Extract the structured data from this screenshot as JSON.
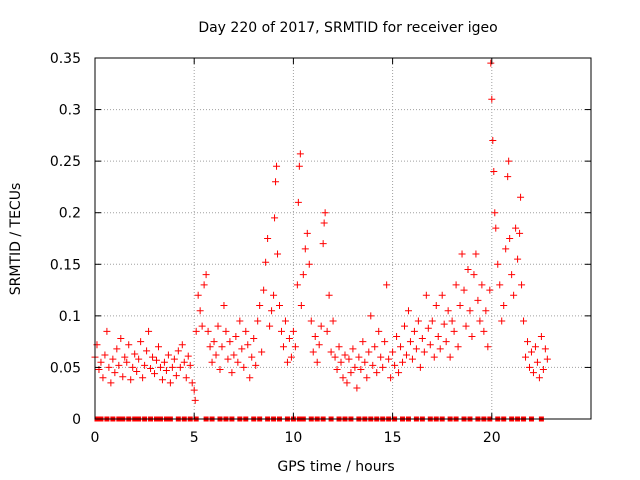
{
  "chart_data": {
    "type": "scatter",
    "title": "Day 220 of 2017, SRMTID for receiver igeo",
    "xlabel": "GPS time / hours",
    "ylabel": "SRMTID / TECUs",
    "xlim": [
      0,
      25
    ],
    "ylim": [
      0,
      0.35
    ],
    "xticks": [
      "0",
      "5",
      "10",
      "15",
      "20"
    ],
    "yticks": [
      "0",
      "0.05",
      "0.1",
      "0.15",
      "0.2",
      "0.25",
      "0.3",
      "0.35"
    ],
    "grid": true,
    "marker": "+",
    "color": "#ff0000",
    "series": [
      {
        "name": "SRMTID",
        "points": [
          [
            0.0,
            0.06
          ],
          [
            0.1,
            0.072
          ],
          [
            0.2,
            0.048
          ],
          [
            0.3,
            0.055
          ],
          [
            0.4,
            0.04
          ],
          [
            0.5,
            0.062
          ],
          [
            0.6,
            0.085
          ],
          [
            0.7,
            0.05
          ],
          [
            0.8,
            0.035
          ],
          [
            0.9,
            0.058
          ],
          [
            1.0,
            0.045
          ],
          [
            1.1,
            0.068
          ],
          [
            1.2,
            0.052
          ],
          [
            1.3,
            0.078
          ],
          [
            1.4,
            0.041
          ],
          [
            1.5,
            0.06
          ],
          [
            1.6,
            0.055
          ],
          [
            1.7,
            0.072
          ],
          [
            1.8,
            0.038
          ],
          [
            1.9,
            0.05
          ],
          [
            2.0,
            0.063
          ],
          [
            2.1,
            0.046
          ],
          [
            2.2,
            0.058
          ],
          [
            2.3,
            0.075
          ],
          [
            2.4,
            0.04
          ],
          [
            2.5,
            0.052
          ],
          [
            2.6,
            0.066
          ],
          [
            2.7,
            0.085
          ],
          [
            2.8,
            0.049
          ],
          [
            2.9,
            0.06
          ],
          [
            3.0,
            0.044
          ],
          [
            3.1,
            0.057
          ],
          [
            3.2,
            0.07
          ],
          [
            3.3,
            0.05
          ],
          [
            3.4,
            0.038
          ],
          [
            3.5,
            0.055
          ],
          [
            3.6,
            0.047
          ],
          [
            3.7,
            0.062
          ],
          [
            3.8,
            0.035
          ],
          [
            3.9,
            0.05
          ],
          [
            4.0,
            0.058
          ],
          [
            4.1,
            0.042
          ],
          [
            4.2,
            0.066
          ],
          [
            4.3,
            0.05
          ],
          [
            4.4,
            0.072
          ],
          [
            4.5,
            0.055
          ],
          [
            4.6,
            0.04
          ],
          [
            4.7,
            0.061
          ],
          [
            4.8,
            0.052
          ],
          [
            4.9,
            0.035
          ],
          [
            5.0,
            0.028
          ],
          [
            5.05,
            0.018
          ],
          [
            5.1,
            0.085
          ],
          [
            5.2,
            0.12
          ],
          [
            5.3,
            0.105
          ],
          [
            5.4,
            0.09
          ],
          [
            5.5,
            0.13
          ],
          [
            5.6,
            0.14
          ],
          [
            5.7,
            0.085
          ],
          [
            5.8,
            0.07
          ],
          [
            5.9,
            0.055
          ],
          [
            6.0,
            0.075
          ],
          [
            6.1,
            0.062
          ],
          [
            6.2,
            0.09
          ],
          [
            6.3,
            0.048
          ],
          [
            6.4,
            0.07
          ],
          [
            6.5,
            0.11
          ],
          [
            6.6,
            0.085
          ],
          [
            6.7,
            0.058
          ],
          [
            6.8,
            0.075
          ],
          [
            6.9,
            0.045
          ],
          [
            7.0,
            0.062
          ],
          [
            7.1,
            0.08
          ],
          [
            7.2,
            0.055
          ],
          [
            7.3,
            0.095
          ],
          [
            7.4,
            0.068
          ],
          [
            7.5,
            0.05
          ],
          [
            7.6,
            0.085
          ],
          [
            7.7,
            0.072
          ],
          [
            7.8,
            0.04
          ],
          [
            7.9,
            0.06
          ],
          [
            8.0,
            0.078
          ],
          [
            8.1,
            0.052
          ],
          [
            8.2,
            0.095
          ],
          [
            8.3,
            0.11
          ],
          [
            8.4,
            0.065
          ],
          [
            8.5,
            0.125
          ],
          [
            8.6,
            0.152
          ],
          [
            8.7,
            0.175
          ],
          [
            8.8,
            0.09
          ],
          [
            8.9,
            0.105
          ],
          [
            9.0,
            0.12
          ],
          [
            9.05,
            0.195
          ],
          [
            9.1,
            0.23
          ],
          [
            9.15,
            0.245
          ],
          [
            9.2,
            0.16
          ],
          [
            9.3,
            0.11
          ],
          [
            9.4,
            0.085
          ],
          [
            9.5,
            0.07
          ],
          [
            9.6,
            0.095
          ],
          [
            9.7,
            0.055
          ],
          [
            9.8,
            0.078
          ],
          [
            9.9,
            0.06
          ],
          [
            10.0,
            0.085
          ],
          [
            10.1,
            0.07
          ],
          [
            10.2,
            0.13
          ],
          [
            10.25,
            0.21
          ],
          [
            10.3,
            0.245
          ],
          [
            10.35,
            0.257
          ],
          [
            10.4,
            0.11
          ],
          [
            10.5,
            0.14
          ],
          [
            10.6,
            0.165
          ],
          [
            10.7,
            0.18
          ],
          [
            10.8,
            0.15
          ],
          [
            10.9,
            0.095
          ],
          [
            11.0,
            0.065
          ],
          [
            11.1,
            0.08
          ],
          [
            11.2,
            0.055
          ],
          [
            11.3,
            0.072
          ],
          [
            11.4,
            0.09
          ],
          [
            11.5,
            0.17
          ],
          [
            11.55,
            0.19
          ],
          [
            11.6,
            0.2
          ],
          [
            11.7,
            0.085
          ],
          [
            11.8,
            0.12
          ],
          [
            11.9,
            0.065
          ],
          [
            12.0,
            0.095
          ],
          [
            12.1,
            0.06
          ],
          [
            12.2,
            0.048
          ],
          [
            12.3,
            0.07
          ],
          [
            12.4,
            0.055
          ],
          [
            12.5,
            0.04
          ],
          [
            12.6,
            0.062
          ],
          [
            12.7,
            0.035
          ],
          [
            12.8,
            0.058
          ],
          [
            12.9,
            0.045
          ],
          [
            13.0,
            0.068
          ],
          [
            13.1,
            0.05
          ],
          [
            13.2,
            0.03
          ],
          [
            13.3,
            0.06
          ],
          [
            13.4,
            0.048
          ],
          [
            13.5,
            0.075
          ],
          [
            13.6,
            0.055
          ],
          [
            13.7,
            0.04
          ],
          [
            13.8,
            0.065
          ],
          [
            13.9,
            0.1
          ],
          [
            14.0,
            0.052
          ],
          [
            14.1,
            0.07
          ],
          [
            14.2,
            0.045
          ],
          [
            14.3,
            0.085
          ],
          [
            14.4,
            0.06
          ],
          [
            14.5,
            0.05
          ],
          [
            14.6,
            0.075
          ],
          [
            14.7,
            0.13
          ],
          [
            14.8,
            0.058
          ],
          [
            14.9,
            0.04
          ],
          [
            15.0,
            0.065
          ],
          [
            15.1,
            0.052
          ],
          [
            15.2,
            0.08
          ],
          [
            15.3,
            0.045
          ],
          [
            15.4,
            0.07
          ],
          [
            15.5,
            0.055
          ],
          [
            15.6,
            0.09
          ],
          [
            15.7,
            0.062
          ],
          [
            15.8,
            0.105
          ],
          [
            15.9,
            0.075
          ],
          [
            16.0,
            0.058
          ],
          [
            16.1,
            0.085
          ],
          [
            16.2,
            0.068
          ],
          [
            16.3,
            0.095
          ],
          [
            16.4,
            0.05
          ],
          [
            16.5,
            0.078
          ],
          [
            16.6,
            0.065
          ],
          [
            16.7,
            0.12
          ],
          [
            16.8,
            0.088
          ],
          [
            16.9,
            0.072
          ],
          [
            17.0,
            0.095
          ],
          [
            17.1,
            0.06
          ],
          [
            17.2,
            0.11
          ],
          [
            17.3,
            0.08
          ],
          [
            17.4,
            0.068
          ],
          [
            17.5,
            0.12
          ],
          [
            17.6,
            0.092
          ],
          [
            17.7,
            0.075
          ],
          [
            17.8,
            0.105
          ],
          [
            17.9,
            0.06
          ],
          [
            18.0,
            0.095
          ],
          [
            18.1,
            0.085
          ],
          [
            18.2,
            0.13
          ],
          [
            18.3,
            0.07
          ],
          [
            18.4,
            0.11
          ],
          [
            18.5,
            0.16
          ],
          [
            18.6,
            0.125
          ],
          [
            18.7,
            0.09
          ],
          [
            18.8,
            0.145
          ],
          [
            18.9,
            0.105
          ],
          [
            19.0,
            0.08
          ],
          [
            19.1,
            0.14
          ],
          [
            19.2,
            0.16
          ],
          [
            19.3,
            0.115
          ],
          [
            19.4,
            0.095
          ],
          [
            19.5,
            0.13
          ],
          [
            19.6,
            0.085
          ],
          [
            19.7,
            0.105
          ],
          [
            19.8,
            0.07
          ],
          [
            19.9,
            0.125
          ],
          [
            19.95,
            0.345
          ],
          [
            20.0,
            0.31
          ],
          [
            20.05,
            0.27
          ],
          [
            20.1,
            0.24
          ],
          [
            20.15,
            0.2
          ],
          [
            20.2,
            0.185
          ],
          [
            20.3,
            0.15
          ],
          [
            20.4,
            0.13
          ],
          [
            20.5,
            0.095
          ],
          [
            20.6,
            0.11
          ],
          [
            20.7,
            0.165
          ],
          [
            20.8,
            0.235
          ],
          [
            20.85,
            0.25
          ],
          [
            20.9,
            0.175
          ],
          [
            21.0,
            0.14
          ],
          [
            21.1,
            0.12
          ],
          [
            21.2,
            0.185
          ],
          [
            21.3,
            0.155
          ],
          [
            21.4,
            0.18
          ],
          [
            21.45,
            0.215
          ],
          [
            21.5,
            0.13
          ],
          [
            21.6,
            0.095
          ],
          [
            21.7,
            0.06
          ],
          [
            21.8,
            0.075
          ],
          [
            21.9,
            0.05
          ],
          [
            22.0,
            0.065
          ],
          [
            22.1,
            0.045
          ],
          [
            22.2,
            0.07
          ],
          [
            22.3,
            0.055
          ],
          [
            22.4,
            0.04
          ],
          [
            22.5,
            0.08
          ],
          [
            22.6,
            0.048
          ],
          [
            22.7,
            0.068
          ],
          [
            22.8,
            0.058
          ]
        ]
      },
      {
        "name": "zero-line",
        "points": [
          [
            0.1,
            0
          ],
          [
            0.3,
            0
          ],
          [
            0.6,
            0
          ],
          [
            0.9,
            0
          ],
          [
            1.2,
            0
          ],
          [
            1.4,
            0
          ],
          [
            1.7,
            0
          ],
          [
            2.0,
            0
          ],
          [
            2.2,
            0
          ],
          [
            2.5,
            0
          ],
          [
            2.8,
            0
          ],
          [
            3.1,
            0
          ],
          [
            3.3,
            0
          ],
          [
            3.6,
            0
          ],
          [
            3.8,
            0
          ],
          [
            4.2,
            0
          ],
          [
            4.5,
            0
          ],
          [
            4.8,
            0
          ],
          [
            5.1,
            0
          ],
          [
            5.6,
            0
          ],
          [
            5.9,
            0
          ],
          [
            6.3,
            0
          ],
          [
            6.6,
            0
          ],
          [
            6.9,
            0
          ],
          [
            7.3,
            0
          ],
          [
            7.6,
            0
          ],
          [
            8.0,
            0
          ],
          [
            8.3,
            0
          ],
          [
            8.7,
            0
          ],
          [
            9.0,
            0
          ],
          [
            9.3,
            0
          ],
          [
            9.7,
            0
          ],
          [
            10.0,
            0
          ],
          [
            10.3,
            0
          ],
          [
            10.5,
            0
          ],
          [
            10.9,
            0
          ],
          [
            11.2,
            0
          ],
          [
            11.5,
            0
          ],
          [
            11.9,
            0
          ],
          [
            12.3,
            0
          ],
          [
            12.6,
            0
          ],
          [
            12.9,
            0
          ],
          [
            13.3,
            0
          ],
          [
            13.6,
            0
          ],
          [
            13.9,
            0
          ],
          [
            14.2,
            0
          ],
          [
            14.5,
            0
          ],
          [
            14.8,
            0
          ],
          [
            15.1,
            0
          ],
          [
            15.5,
            0
          ],
          [
            15.8,
            0
          ],
          [
            16.2,
            0
          ],
          [
            16.5,
            0
          ],
          [
            16.9,
            0
          ],
          [
            17.2,
            0
          ],
          [
            17.5,
            0
          ],
          [
            17.9,
            0
          ],
          [
            18.2,
            0
          ],
          [
            18.6,
            0
          ],
          [
            18.9,
            0
          ],
          [
            19.3,
            0
          ],
          [
            19.6,
            0
          ],
          [
            19.9,
            0
          ],
          [
            20.3,
            0
          ],
          [
            20.6,
            0
          ],
          [
            21.0,
            0
          ],
          [
            21.3,
            0
          ],
          [
            21.6,
            0
          ],
          [
            22.0,
            0
          ],
          [
            22.5,
            0
          ]
        ]
      }
    ]
  }
}
